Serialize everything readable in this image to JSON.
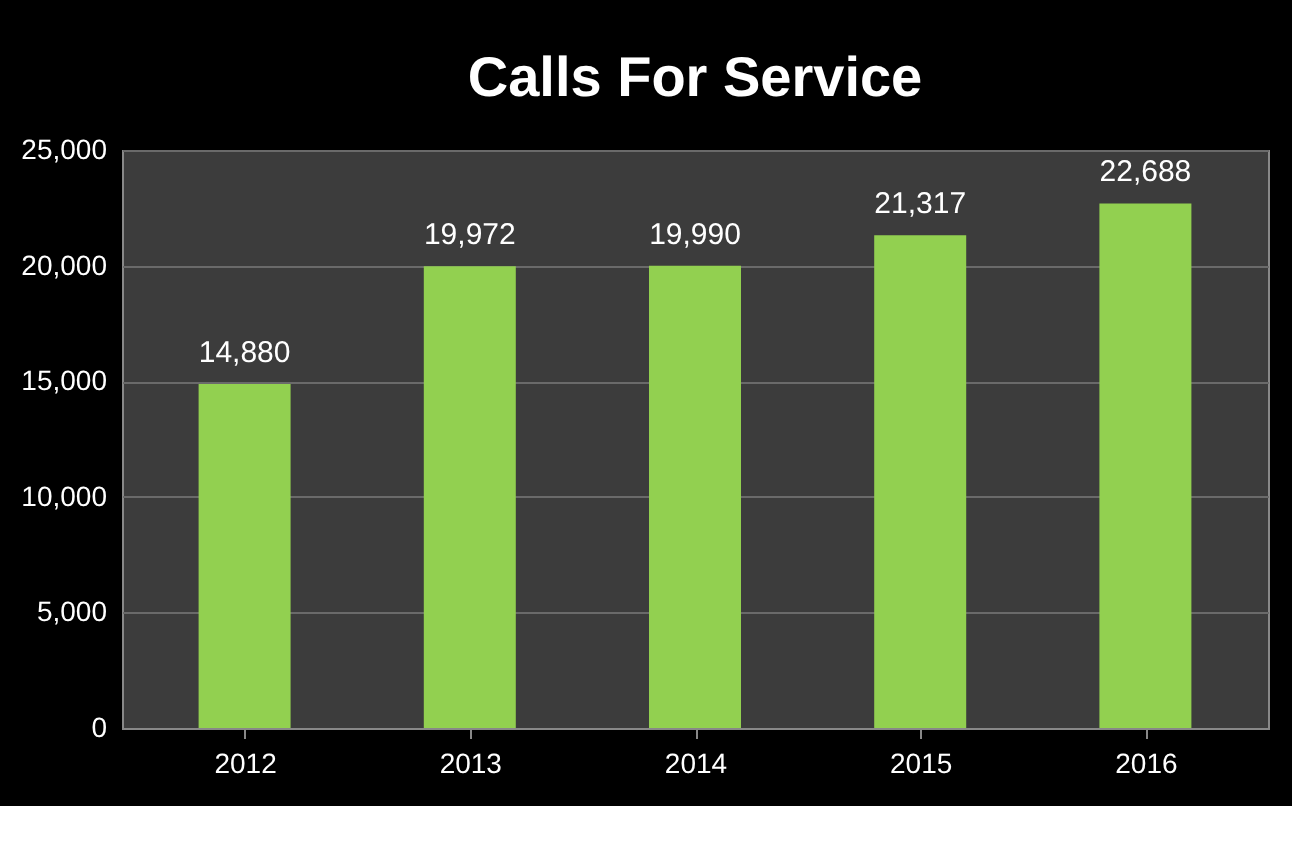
{
  "chart_data": {
    "type": "bar",
    "title": "Calls For Service",
    "categories": [
      "2012",
      "2013",
      "2014",
      "2015",
      "2016"
    ],
    "values": [
      14880,
      19972,
      19990,
      21317,
      22688
    ],
    "value_labels": [
      "14,880",
      "19,972",
      "19,990",
      "21,317",
      "22,688"
    ],
    "color": "#92d050",
    "ylim": [
      0,
      25000
    ],
    "yticks": [
      0,
      {
        "value": 5000,
        "label": "5,000"
      },
      {
        "value": 10000,
        "label": "10,000"
      },
      {
        "value": 15000,
        "label": "15,000"
      },
      {
        "value": 20000,
        "label": "20,000"
      },
      {
        "value": 25000,
        "label": "25,000"
      }
    ],
    "grid": "y"
  }
}
